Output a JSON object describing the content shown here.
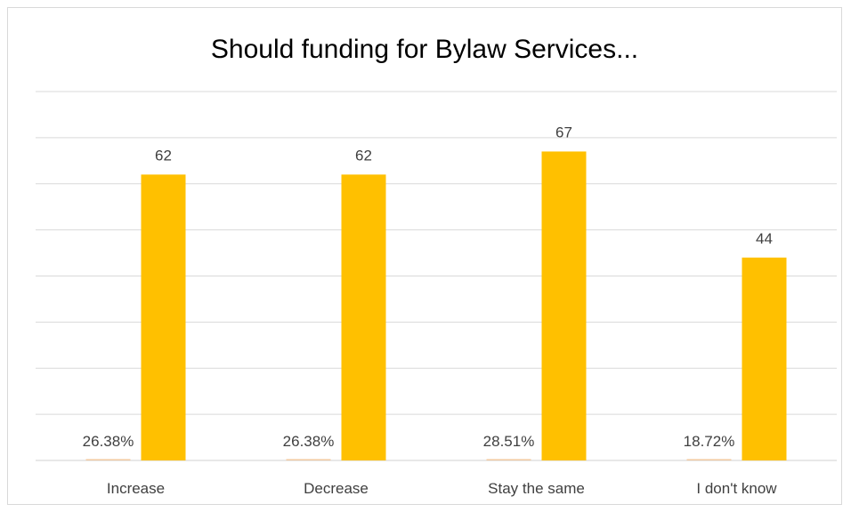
{
  "chart_data": {
    "type": "bar",
    "title": "Should funding for Bylaw Services...",
    "categories": [
      "Increase",
      "Decrease",
      "Stay the same",
      "I don't know"
    ],
    "series": [
      {
        "values": [
          0.2638,
          0.2638,
          0.2851,
          0.1872
        ],
        "labels": [
          "26.38%",
          "26.38%",
          "28.51%",
          "18.72%"
        ],
        "color": "#F2C9A0"
      },
      {
        "values": [
          62,
          62,
          67,
          44
        ],
        "labels": [
          "62",
          "62",
          "67",
          "44"
        ],
        "color": "#FFC000"
      }
    ],
    "ylim": [
      0,
      80
    ],
    "grid": true,
    "legend": "none",
    "xlabel": "",
    "ylabel": ""
  }
}
